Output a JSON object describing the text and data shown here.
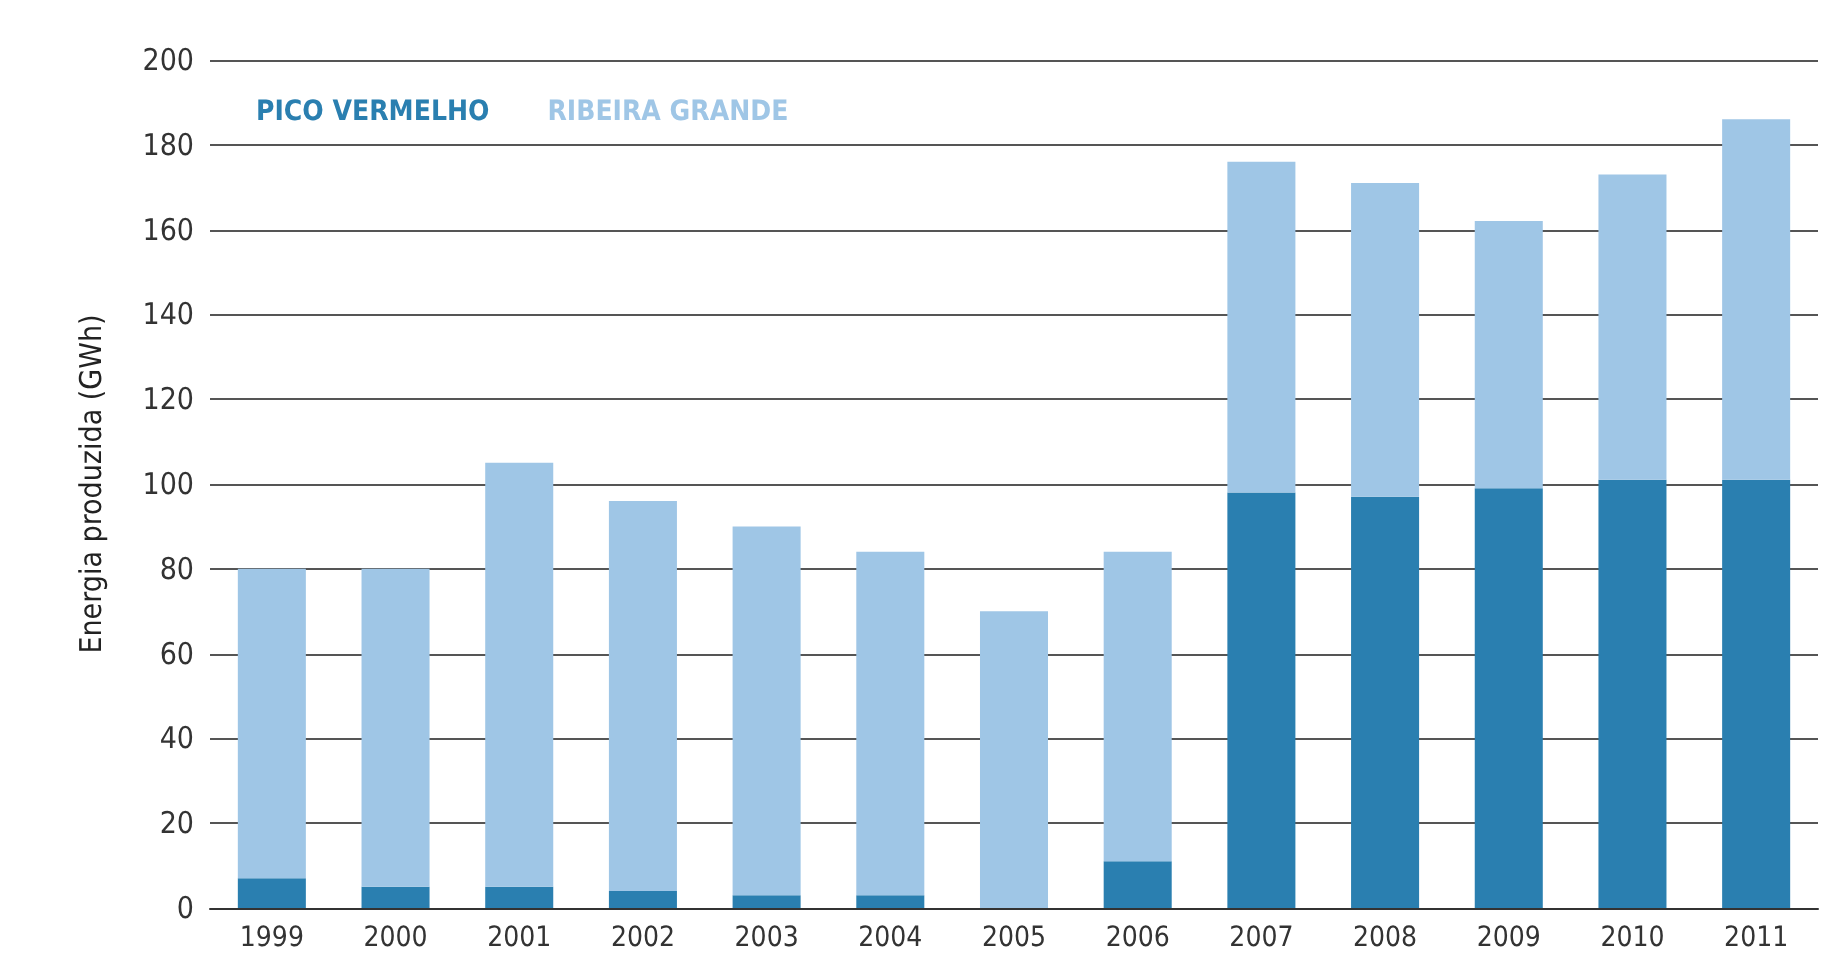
{
  "chart_data": {
    "type": "bar",
    "stacked": true,
    "ylabel": "Energia produzida (GWh)",
    "categories": [
      "1999",
      "2000",
      "2001",
      "2002",
      "2003",
      "2004",
      "2005",
      "2006",
      "2007",
      "2008",
      "2009",
      "2010",
      "2011"
    ],
    "series": [
      {
        "name": "PICO VERMELHO",
        "color": "#2a7fb0",
        "values": [
          7,
          5,
          5,
          4,
          3,
          3,
          0,
          11,
          98,
          97,
          99,
          101,
          101
        ]
      },
      {
        "name": "RIBEIRA GRANDE",
        "color": "#9fc6e6",
        "values": [
          73,
          75,
          100,
          92,
          87,
          81,
          70,
          73,
          78,
          74,
          63,
          72,
          85
        ]
      }
    ],
    "ylim": [
      0,
      200
    ],
    "yticks": [
      0,
      20,
      40,
      60,
      80,
      100,
      120,
      140,
      160,
      180,
      200
    ],
    "grid": "y",
    "legend": "top left"
  }
}
